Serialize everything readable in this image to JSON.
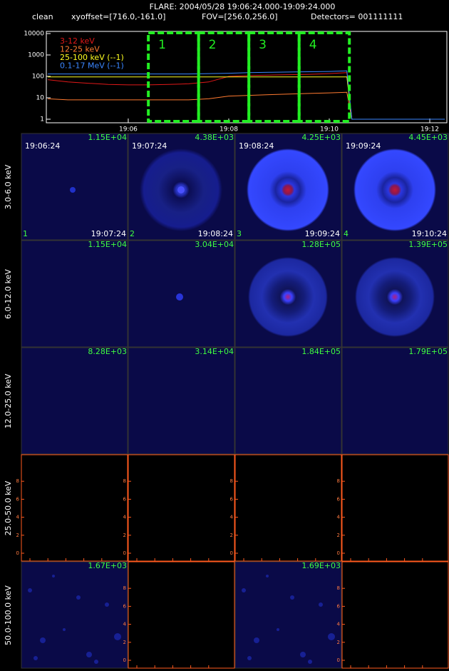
{
  "header": {
    "title": "FLARE: 2004/05/28 19:06:24.000-19:09:24.000",
    "method": "clean",
    "xyoffset": "xyoffset=[716.0,-161.0]",
    "fov": "FOV=[256.0,256.0]",
    "detectors": "Detectors= 001111111"
  },
  "chart_data": {
    "type": "line",
    "log_y": true,
    "x": [
      4.4,
      4.8,
      5.2,
      5.6,
      6.0,
      6.4,
      6.8,
      7.2,
      7.6,
      8.0,
      8.4,
      8.8,
      9.2,
      9.6,
      10.0,
      10.35,
      10.45,
      12.3
    ],
    "series": [
      {
        "name": "3-12 keV",
        "color": "#e01818",
        "values": [
          70,
          55,
          48,
          42,
          40,
          40,
          42,
          45,
          55,
          100,
          110,
          115,
          120,
          125,
          135,
          150,
          1,
          null
        ]
      },
      {
        "name": "12-25 keV",
        "color": "#ff7a30",
        "values": [
          9,
          8,
          8,
          8,
          8,
          8,
          8,
          8,
          9,
          12,
          13,
          14,
          15,
          16,
          17,
          18,
          1,
          null
        ]
      },
      {
        "name": "25-100 keV (--1)",
        "color": "#ffff20",
        "values": [
          95,
          95,
          95,
          95,
          95,
          95,
          95,
          95,
          95,
          95,
          95,
          95,
          95,
          95,
          95,
          95,
          1,
          null
        ]
      },
      {
        "name": "0.1-17 MeV (--1)",
        "color": "#3a86ff",
        "values": [
          130,
          130,
          130,
          130,
          130,
          130,
          130,
          130,
          135,
          140,
          150,
          155,
          160,
          165,
          170,
          180,
          1,
          1
        ]
      }
    ],
    "xlim": [
      4.37,
      12.34
    ],
    "xticks": [
      {
        "value": 6,
        "label": "19:06"
      },
      {
        "value": 8,
        "label": "19:08"
      },
      {
        "value": 10,
        "label": "19:10"
      },
      {
        "value": 12,
        "label": "19:12"
      }
    ],
    "ylim": [
      1,
      10000
    ],
    "yticks": [
      1,
      10,
      100,
      1000,
      10000
    ],
    "intervals": [
      {
        "start": 6.4,
        "end": 7.4,
        "label": "1"
      },
      {
        "start": 7.4,
        "end": 8.4,
        "label": "2"
      },
      {
        "start": 8.4,
        "end": 9.4,
        "label": "3"
      },
      {
        "start": 9.4,
        "end": 10.4,
        "label": "4"
      }
    ],
    "interval_color": "#22ee22"
  },
  "panels": {
    "empty_axis_lim": [
      0,
      10
    ],
    "empty_axis_ticks": [
      0,
      2,
      4,
      6,
      8
    ],
    "rows": [
      {
        "label": "3.0-6.0 keV",
        "cells": [
          {
            "kind": "faint",
            "max": "1.15E+04",
            "start": "19:06:24",
            "end": "19:07:24",
            "index": "1"
          },
          {
            "kind": "patchy",
            "max": "4.38E+03",
            "start": "19:07:24",
            "end": "19:08:24",
            "index": "2"
          },
          {
            "kind": "disk",
            "max": "4.25E+03",
            "start": "19:08:24",
            "end": "19:09:24",
            "index": "3"
          },
          {
            "kind": "disk",
            "max": "4.45E+03",
            "start": "19:09:24",
            "end": "19:10:24",
            "index": "4"
          }
        ]
      },
      {
        "label": "6.0-12.0 keV",
        "cells": [
          {
            "kind": "blank",
            "max": "1.15E+04"
          },
          {
            "kind": "dot",
            "max": "3.04E+04"
          },
          {
            "kind": "ring",
            "max": "1.28E+05"
          },
          {
            "kind": "ring",
            "max": "1.39E+05"
          }
        ]
      },
      {
        "label": "12.0-25.0 keV",
        "cells": [
          {
            "kind": "blank",
            "max": "8.28E+03"
          },
          {
            "kind": "blank",
            "max": "3.14E+04"
          },
          {
            "kind": "blank",
            "max": "1.84E+05"
          },
          {
            "kind": "blank",
            "max": "1.79E+05"
          }
        ]
      },
      {
        "label": "25.0-50.0 keV",
        "cells": [
          {
            "kind": "empty"
          },
          {
            "kind": "empty"
          },
          {
            "kind": "empty"
          },
          {
            "kind": "empty"
          }
        ]
      },
      {
        "label": "50.0-100.0 keV",
        "cells": [
          {
            "kind": "noise",
            "max": "1.67E+03"
          },
          {
            "kind": "empty"
          },
          {
            "kind": "noise",
            "max": "1.69E+03"
          },
          {
            "kind": "empty"
          }
        ]
      }
    ]
  }
}
